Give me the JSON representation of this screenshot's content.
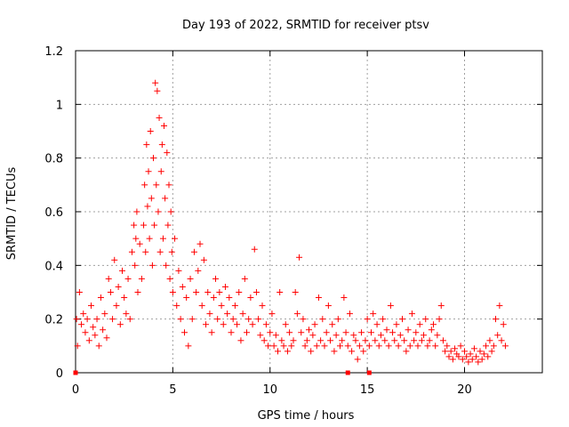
{
  "chart_data": {
    "type": "scatter",
    "title": "Day 193 of 2022, SRMTID for receiver ptsv",
    "xlabel": "GPS time / hours",
    "ylabel": "SRMTID / TECUs",
    "xlim": [
      0,
      24
    ],
    "ylim": [
      0,
      1.2
    ],
    "xticks": [
      0,
      5,
      10,
      15,
      20
    ],
    "yticks": [
      0,
      0.2,
      0.4,
      0.6,
      0.8,
      1,
      1.2
    ],
    "xtick_labels": [
      "0",
      "5",
      "10",
      "15",
      "20"
    ],
    "ytick_labels": [
      "0",
      "0.2",
      "0.4",
      "0.6",
      "0.8",
      "1",
      "1.2"
    ],
    "grid": true,
    "marker": "+",
    "color": "#ff0000",
    "series": [
      {
        "name": "SRMTID",
        "x": [
          0.05,
          0.1,
          0.2,
          0.3,
          0.4,
          0.5,
          0.6,
          0.7,
          0.8,
          0.9,
          1.0,
          1.1,
          1.2,
          1.3,
          1.4,
          1.5,
          1.6,
          1.7,
          1.8,
          1.9,
          2.0,
          2.1,
          2.2,
          2.3,
          2.4,
          2.5,
          2.6,
          2.7,
          2.8,
          2.9,
          3.0,
          3.05,
          3.1,
          3.15,
          3.2,
          3.3,
          3.4,
          3.5,
          3.55,
          3.6,
          3.65,
          3.7,
          3.75,
          3.8,
          3.85,
          3.9,
          3.95,
          4.0,
          4.05,
          4.1,
          4.15,
          4.2,
          4.25,
          4.3,
          4.35,
          4.4,
          4.45,
          4.5,
          4.55,
          4.6,
          4.65,
          4.7,
          4.75,
          4.8,
          4.85,
          4.9,
          4.95,
          5.0,
          5.1,
          5.2,
          5.3,
          5.4,
          5.5,
          5.6,
          5.7,
          5.8,
          5.9,
          6.0,
          6.1,
          6.2,
          6.3,
          6.4,
          6.5,
          6.6,
          6.7,
          6.8,
          6.9,
          7.0,
          7.1,
          7.2,
          7.3,
          7.4,
          7.5,
          7.6,
          7.7,
          7.8,
          7.9,
          8.0,
          8.1,
          8.2,
          8.3,
          8.4,
          8.5,
          8.6,
          8.7,
          8.8,
          8.9,
          9.0,
          9.1,
          9.2,
          9.3,
          9.4,
          9.5,
          9.6,
          9.7,
          9.8,
          9.9,
          10.0,
          10.1,
          10.2,
          10.3,
          10.4,
          10.5,
          10.6,
          10.7,
          10.8,
          10.9,
          11.0,
          11.1,
          11.2,
          11.3,
          11.4,
          11.5,
          11.6,
          11.7,
          11.8,
          11.9,
          12.0,
          12.1,
          12.2,
          12.3,
          12.4,
          12.5,
          12.6,
          12.7,
          12.8,
          12.9,
          13.0,
          13.1,
          13.2,
          13.3,
          13.4,
          13.5,
          13.6,
          13.7,
          13.8,
          13.9,
          14.0,
          14.1,
          14.2,
          14.3,
          14.4,
          14.5,
          14.6,
          14.7,
          14.8,
          14.9,
          15.0,
          15.1,
          15.2,
          15.3,
          15.4,
          15.5,
          15.6,
          15.7,
          15.8,
          15.9,
          16.0,
          16.1,
          16.2,
          16.3,
          16.4,
          16.5,
          16.6,
          16.7,
          16.8,
          16.9,
          17.0,
          17.1,
          17.2,
          17.3,
          17.4,
          17.5,
          17.6,
          17.7,
          17.8,
          17.9,
          18.0,
          18.1,
          18.2,
          18.3,
          18.4,
          18.5,
          18.6,
          18.7,
          18.8,
          18.9,
          19.0,
          19.1,
          19.2,
          19.3,
          19.4,
          19.5,
          19.6,
          19.7,
          19.8,
          19.9,
          20.0,
          20.1,
          20.2,
          20.3,
          20.4,
          20.5,
          20.6,
          20.7,
          20.8,
          20.9,
          21.0,
          21.1,
          21.2,
          21.3,
          21.4,
          21.5,
          21.6,
          21.7,
          21.8,
          21.9,
          22.0,
          22.1
        ],
        "y": [
          0.2,
          0.1,
          0.3,
          0.18,
          0.22,
          0.15,
          0.2,
          0.12,
          0.25,
          0.17,
          0.14,
          0.2,
          0.1,
          0.28,
          0.16,
          0.22,
          0.13,
          0.35,
          0.3,
          0.2,
          0.42,
          0.25,
          0.32,
          0.18,
          0.38,
          0.28,
          0.22,
          0.35,
          0.2,
          0.45,
          0.55,
          0.4,
          0.5,
          0.6,
          0.3,
          0.48,
          0.35,
          0.55,
          0.7,
          0.45,
          0.85,
          0.62,
          0.75,
          0.5,
          0.9,
          0.65,
          0.4,
          0.8,
          0.55,
          1.08,
          0.7,
          1.05,
          0.6,
          0.95,
          0.45,
          0.75,
          0.85,
          0.5,
          0.92,
          0.65,
          0.4,
          0.82,
          0.55,
          0.7,
          0.35,
          0.6,
          0.45,
          0.3,
          0.5,
          0.25,
          0.38,
          0.2,
          0.32,
          0.15,
          0.28,
          0.1,
          0.35,
          0.2,
          0.45,
          0.3,
          0.38,
          0.48,
          0.25,
          0.42,
          0.18,
          0.3,
          0.22,
          0.15,
          0.28,
          0.35,
          0.2,
          0.3,
          0.25,
          0.18,
          0.32,
          0.22,
          0.28,
          0.15,
          0.2,
          0.25,
          0.18,
          0.3,
          0.12,
          0.22,
          0.35,
          0.15,
          0.2,
          0.28,
          0.18,
          0.46,
          0.3,
          0.2,
          0.14,
          0.25,
          0.12,
          0.18,
          0.1,
          0.15,
          0.22,
          0.1,
          0.14,
          0.08,
          0.3,
          0.12,
          0.1,
          0.18,
          0.08,
          0.15,
          0.1,
          0.12,
          0.3,
          0.22,
          0.43,
          0.15,
          0.2,
          0.1,
          0.12,
          0.16,
          0.08,
          0.14,
          0.18,
          0.1,
          0.28,
          0.12,
          0.2,
          0.1,
          0.15,
          0.25,
          0.12,
          0.18,
          0.08,
          0.14,
          0.2,
          0.1,
          0.12,
          0.28,
          0.15,
          0.1,
          0.22,
          0.08,
          0.14,
          0.12,
          0.05,
          0.1,
          0.15,
          0.08,
          0.12,
          0.2,
          0.1,
          0.15,
          0.22,
          0.12,
          0.18,
          0.1,
          0.14,
          0.2,
          0.12,
          0.16,
          0.1,
          0.25,
          0.15,
          0.12,
          0.18,
          0.1,
          0.14,
          0.2,
          0.12,
          0.08,
          0.16,
          0.1,
          0.22,
          0.12,
          0.15,
          0.1,
          0.18,
          0.12,
          0.14,
          0.2,
          0.1,
          0.12,
          0.16,
          0.18,
          0.1,
          0.14,
          0.2,
          0.25,
          0.12,
          0.08,
          0.1,
          0.06,
          0.08,
          0.05,
          0.09,
          0.07,
          0.06,
          0.1,
          0.05,
          0.08,
          0.06,
          0.04,
          0.07,
          0.05,
          0.09,
          0.06,
          0.04,
          0.08,
          0.05,
          0.07,
          0.1,
          0.06,
          0.12,
          0.08,
          0.1,
          0.2,
          0.14,
          0.25,
          0.12,
          0.18,
          0.1
        ]
      }
    ],
    "axis_markers_x": [
      0,
      14,
      15.1
    ]
  }
}
